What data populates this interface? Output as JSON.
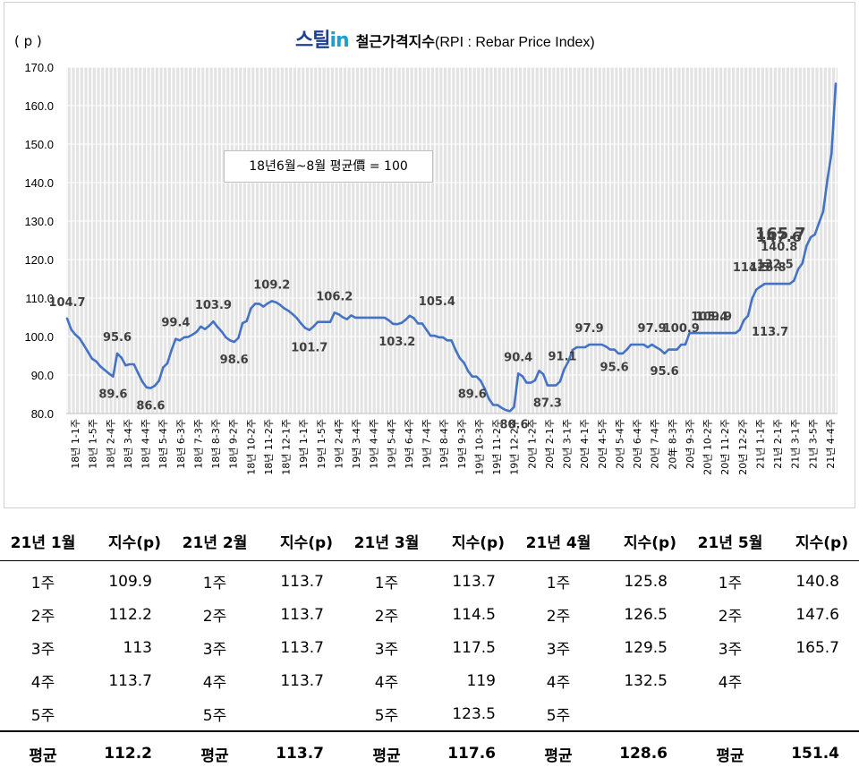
{
  "header": {
    "logo_main": "스틸",
    "logo_in": "in",
    "title_main": "철근가격지수",
    "title_sub": "(RPI : Rebar Price Index)",
    "unit": "( p )"
  },
  "note": "18년6월~8월 평균價 = 100",
  "colors": {
    "line": "#4472c4",
    "plot_bg": "#e3e3e3",
    "grid": "#ffffff"
  },
  "chart_data": {
    "type": "line",
    "ylim": [
      80,
      170
    ],
    "yticks": [
      "80.0",
      "90.0",
      "100.0",
      "110.0",
      "120.0",
      "130.0",
      "140.0",
      "150.0",
      "160.0",
      "170.0"
    ],
    "grid": true,
    "x_tick_labels": [
      "18년 1-1주",
      "18년 1-5주",
      "18년 2-4주",
      "18년 3-4주",
      "18년 4-4주",
      "18년 5-4주",
      "18년 6-3주",
      "18년 7-3주",
      "18년 8-3주",
      "18년 9-2주",
      "18년 10-2주",
      "18년 11-2주",
      "18년 12-1주",
      "19년 1-1주",
      "19년 1-5주",
      "19년 2-4주",
      "19년 3-4주",
      "19년 4-4주",
      "19년 5-4주",
      "19년 6-4주",
      "19년 7-4주",
      "19년 8-4주",
      "19년 9-3주",
      "19년 10-3주",
      "19년 11-2주",
      "19년 12-2주",
      "20년 1-2주",
      "20년 2-1주",
      "20년 3-1주",
      "20년 4-1주",
      "20년 4-5주",
      "20년 5-4주",
      "20년 6-4주",
      "20년 7-4주",
      "20年 8-3주",
      "20년 9-3주",
      "20년 10-2주",
      "20년 11-2주",
      "20년 12-2주",
      "21년 1-1주",
      "21년 2-1주",
      "21년 3-1주",
      "21년 3-5주",
      "21년 4-4주"
    ],
    "series": [
      {
        "values": [
          104.7,
          101.8,
          100.5,
          99.5,
          97.8,
          96.0,
          94.2,
          93.5,
          92.2,
          91.3,
          90.4,
          89.6,
          95.6,
          94.5,
          92.5,
          92.8,
          92.8,
          90.5,
          88.3,
          86.8,
          86.6,
          87.2,
          88.5,
          92.0,
          93.0,
          96.5,
          99.4,
          99.0,
          99.8,
          99.9,
          100.5,
          101.2,
          102.6,
          101.9,
          102.8,
          103.9,
          102.5,
          101.3,
          99.8,
          99.0,
          98.6,
          99.6,
          103.5,
          104.0,
          107.3,
          108.5,
          108.5,
          107.8,
          108.6,
          109.2,
          108.9,
          108.2,
          107.3,
          106.7,
          105.8,
          104.8,
          103.4,
          102.2,
          101.7,
          102.6,
          103.8,
          103.8,
          103.8,
          103.8,
          106.2,
          105.8,
          105.0,
          104.5,
          105.5,
          104.9,
          104.9,
          104.9,
          104.9,
          104.9,
          104.9,
          104.9,
          104.9,
          104.2,
          103.3,
          103.2,
          103.5,
          104.3,
          105.4,
          104.8,
          103.4,
          103.4,
          101.8,
          100.2,
          100.2,
          99.8,
          99.8,
          99.0,
          99.0,
          96.5,
          94.4,
          93.2,
          91.0,
          89.6,
          89.6,
          88.5,
          86.4,
          83.8,
          82.2,
          82.2,
          81.5,
          80.9,
          80.6,
          81.7,
          90.4,
          89.7,
          88.0,
          88.0,
          88.6,
          91.1,
          90.2,
          87.3,
          87.3,
          87.3,
          88.3,
          91.5,
          93.5,
          96.5,
          97.2,
          97.2,
          97.2,
          97.9,
          97.9,
          97.9,
          97.9,
          97.4,
          96.6,
          96.6,
          95.6,
          95.6,
          96.6,
          97.9,
          97.9,
          97.9,
          97.9,
          97.2,
          97.9,
          97.2,
          96.6,
          95.6,
          96.6,
          96.6,
          96.6,
          97.9,
          97.9,
          100.9,
          100.9,
          100.9,
          100.9,
          100.9,
          100.9,
          100.9,
          100.9,
          100.9,
          100.9,
          100.9,
          100.9,
          101.7,
          104.2,
          105.4,
          109.9,
          112.2,
          113.0,
          113.7,
          113.7,
          113.7,
          113.7,
          113.7,
          113.7,
          113.7,
          114.5,
          117.5,
          119.0,
          123.5,
          125.8,
          126.5,
          129.5,
          132.5,
          140.8,
          147.6,
          165.7
        ]
      }
    ],
    "point_labels": [
      {
        "i": 0,
        "text": "104.7",
        "pos": "above"
      },
      {
        "i": 11,
        "text": "89.6",
        "pos": "below"
      },
      {
        "i": 12,
        "text": "95.6",
        "pos": "above"
      },
      {
        "i": 20,
        "text": "86.6",
        "pos": "below"
      },
      {
        "i": 26,
        "text": "99.4",
        "pos": "above"
      },
      {
        "i": 35,
        "text": "103.9",
        "pos": "above"
      },
      {
        "i": 40,
        "text": "98.6",
        "pos": "below"
      },
      {
        "i": 49,
        "text": "109.2",
        "pos": "above"
      },
      {
        "i": 58,
        "text": "101.7",
        "pos": "below"
      },
      {
        "i": 64,
        "text": "106.2",
        "pos": "above"
      },
      {
        "i": 79,
        "text": "103.2",
        "pos": "below"
      },
      {
        "i": 82,
        "text": "105.4",
        "pos": "aboveright"
      },
      {
        "i": 97,
        "text": "89.6",
        "pos": "below"
      },
      {
        "i": 107,
        "text": "80.6",
        "pos": "below"
      },
      {
        "i": 108,
        "text": "90.4",
        "pos": "above"
      },
      {
        "i": 113,
        "text": "91.1",
        "pos": "aboveright"
      },
      {
        "i": 115,
        "text": "87.3",
        "pos": "below"
      },
      {
        "i": 125,
        "text": "97.9",
        "pos": "above"
      },
      {
        "i": 131,
        "text": "95.6",
        "pos": "below"
      },
      {
        "i": 140,
        "text": "97.9",
        "pos": "above"
      },
      {
        "i": 143,
        "text": "95.6",
        "pos": "below"
      },
      {
        "i": 147,
        "text": "100.9",
        "pos": "above"
      },
      {
        "i": 159,
        "text": "105.4",
        "pos": "aboveleft"
      },
      {
        "i": 160,
        "text": "109.9",
        "pos": "aboveleft"
      },
      {
        "i": 163,
        "text": "113.7",
        "pos": "belowright"
      },
      {
        "i": 169,
        "text": "114.5",
        "pos": "aboveleft"
      },
      {
        "i": 173,
        "text": "125.8",
        "pos": "aboveleft"
      },
      {
        "i": 176,
        "text": "132.5",
        "pos": "left"
      },
      {
        "i": 177,
        "text": "140.8",
        "pos": "left"
      },
      {
        "i": 178,
        "text": "147.6",
        "pos": "left"
      },
      {
        "i": 179,
        "text": "165.7",
        "pos": "left"
      }
    ]
  },
  "table": {
    "headers": [
      "21년 1월",
      "지수(p)",
      "21년 2월",
      "지수(p)",
      "21년 3월",
      "지수(p)",
      "21년 4월",
      "지수(p)",
      "21년 5월",
      "지수(p)"
    ],
    "rows": [
      [
        "1주",
        "109.9",
        "1주",
        "113.7",
        "1주",
        "113.7",
        "1주",
        "125.8",
        "1주",
        "140.8"
      ],
      [
        "2주",
        "112.2",
        "2주",
        "113.7",
        "2주",
        "114.5",
        "2주",
        "126.5",
        "2주",
        "147.6"
      ],
      [
        "3주",
        "113",
        "3주",
        "113.7",
        "3주",
        "117.5",
        "3주",
        "129.5",
        "3주",
        "165.7"
      ],
      [
        "4주",
        "113.7",
        "4주",
        "113.7",
        "4주",
        "119",
        "4주",
        "132.5",
        "4주",
        ""
      ],
      [
        "5주",
        "",
        "5주",
        "",
        "5주",
        "123.5",
        "5주",
        "",
        "",
        ""
      ]
    ],
    "footer": [
      "평균",
      "112.2",
      "평균",
      "113.7",
      "평균",
      "117.6",
      "평균",
      "128.6",
      "평균",
      "151.4"
    ]
  }
}
